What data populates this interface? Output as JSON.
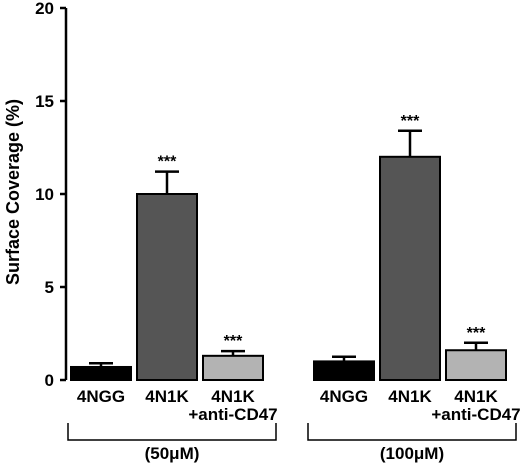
{
  "chart_data": {
    "type": "bar",
    "title": "",
    "xlabel": "",
    "ylabel": "Surface Coverage (%)",
    "ylim": [
      0,
      20
    ],
    "yticks": [
      0,
      5,
      10,
      15,
      20
    ],
    "grid": false,
    "legend": "none",
    "groups": [
      {
        "label": "(50μM)",
        "bars": [
          {
            "category": "4NGG",
            "value": 0.7,
            "error": 0.2,
            "color": "#000000",
            "significance": ""
          },
          {
            "category": "4N1K",
            "value": 10.0,
            "error": 1.2,
            "color": "#555555",
            "significance": "***"
          },
          {
            "category": "4N1K\n+anti-CD47",
            "value": 1.3,
            "error": 0.25,
            "color": "#b3b3b3",
            "significance": "***"
          }
        ]
      },
      {
        "label": "(100μM)",
        "bars": [
          {
            "category": "4NGG",
            "value": 1.0,
            "error": 0.25,
            "color": "#000000",
            "significance": ""
          },
          {
            "category": "4N1K",
            "value": 12.0,
            "error": 1.4,
            "color": "#555555",
            "significance": "***"
          },
          {
            "category": "4N1K\n+anti-CD47",
            "value": 1.6,
            "error": 0.4,
            "color": "#b3b3b3",
            "significance": "***"
          }
        ]
      }
    ]
  }
}
